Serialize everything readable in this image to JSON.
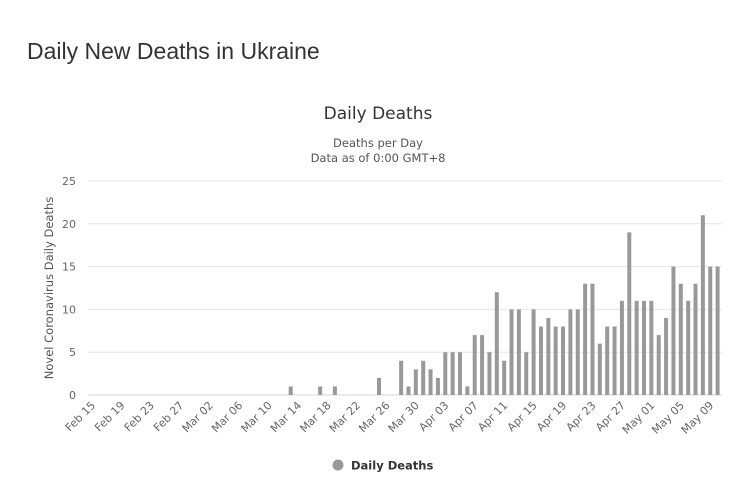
{
  "page": {
    "title": "Daily New Deaths in Ukraine"
  },
  "chart_data": {
    "type": "bar",
    "title": "Daily Deaths",
    "subtitle": [
      "Deaths per Day",
      "Data as of 0:00 GMT+8"
    ],
    "xlabel": "",
    "ylabel": "Novel Coronavirus Daily Deaths",
    "ylim": [
      0,
      25
    ],
    "yticks": [
      0,
      5,
      10,
      15,
      20,
      25
    ],
    "grid": true,
    "legend": {
      "position": "bottom-center",
      "entries": [
        "Daily Deaths"
      ]
    },
    "color": "#999999",
    "categories": [
      "Feb 15",
      "Feb 16",
      "Feb 17",
      "Feb 18",
      "Feb 19",
      "Feb 20",
      "Feb 21",
      "Feb 22",
      "Feb 23",
      "Feb 24",
      "Feb 25",
      "Feb 26",
      "Feb 27",
      "Feb 28",
      "Feb 29",
      "Mar 01",
      "Mar 02",
      "Mar 03",
      "Mar 04",
      "Mar 05",
      "Mar 06",
      "Mar 07",
      "Mar 08",
      "Mar 09",
      "Mar 10",
      "Mar 11",
      "Mar 12",
      "Mar 13",
      "Mar 14",
      "Mar 15",
      "Mar 16",
      "Mar 17",
      "Mar 18",
      "Mar 19",
      "Mar 20",
      "Mar 21",
      "Mar 22",
      "Mar 23",
      "Mar 24",
      "Mar 25",
      "Mar 26",
      "Mar 27",
      "Mar 28",
      "Mar 29",
      "Mar 30",
      "Mar 31",
      "Apr 01",
      "Apr 02",
      "Apr 03",
      "Apr 04",
      "Apr 05",
      "Apr 06",
      "Apr 07",
      "Apr 08",
      "Apr 09",
      "Apr 10",
      "Apr 11",
      "Apr 12",
      "Apr 13",
      "Apr 14",
      "Apr 15",
      "Apr 16",
      "Apr 17",
      "Apr 18",
      "Apr 19",
      "Apr 20",
      "Apr 21",
      "Apr 22",
      "Apr 23",
      "Apr 24",
      "Apr 25",
      "Apr 26",
      "Apr 27",
      "Apr 28",
      "Apr 29",
      "Apr 30",
      "May 01",
      "May 02",
      "May 03",
      "May 04",
      "May 05",
      "May 06",
      "May 07",
      "May 08",
      "May 09",
      "May 10"
    ],
    "values": [
      0,
      0,
      0,
      0,
      0,
      0,
      0,
      0,
      0,
      0,
      0,
      0,
      0,
      0,
      0,
      0,
      0,
      0,
      0,
      0,
      0,
      0,
      0,
      0,
      0,
      0,
      0,
      1,
      0,
      0,
      0,
      1,
      0,
      1,
      0,
      0,
      0,
      0,
      0,
      2,
      0,
      0,
      4,
      1,
      3,
      4,
      3,
      2,
      5,
      5,
      5,
      1,
      7,
      7,
      5,
      12,
      4,
      10,
      10,
      5,
      10,
      8,
      9,
      8,
      8,
      10,
      10,
      13,
      13,
      6,
      8,
      8,
      11,
      19,
      11,
      11,
      11,
      7,
      9,
      15,
      13,
      11,
      13,
      21,
      15,
      15
    ],
    "xtick_every": 4
  }
}
